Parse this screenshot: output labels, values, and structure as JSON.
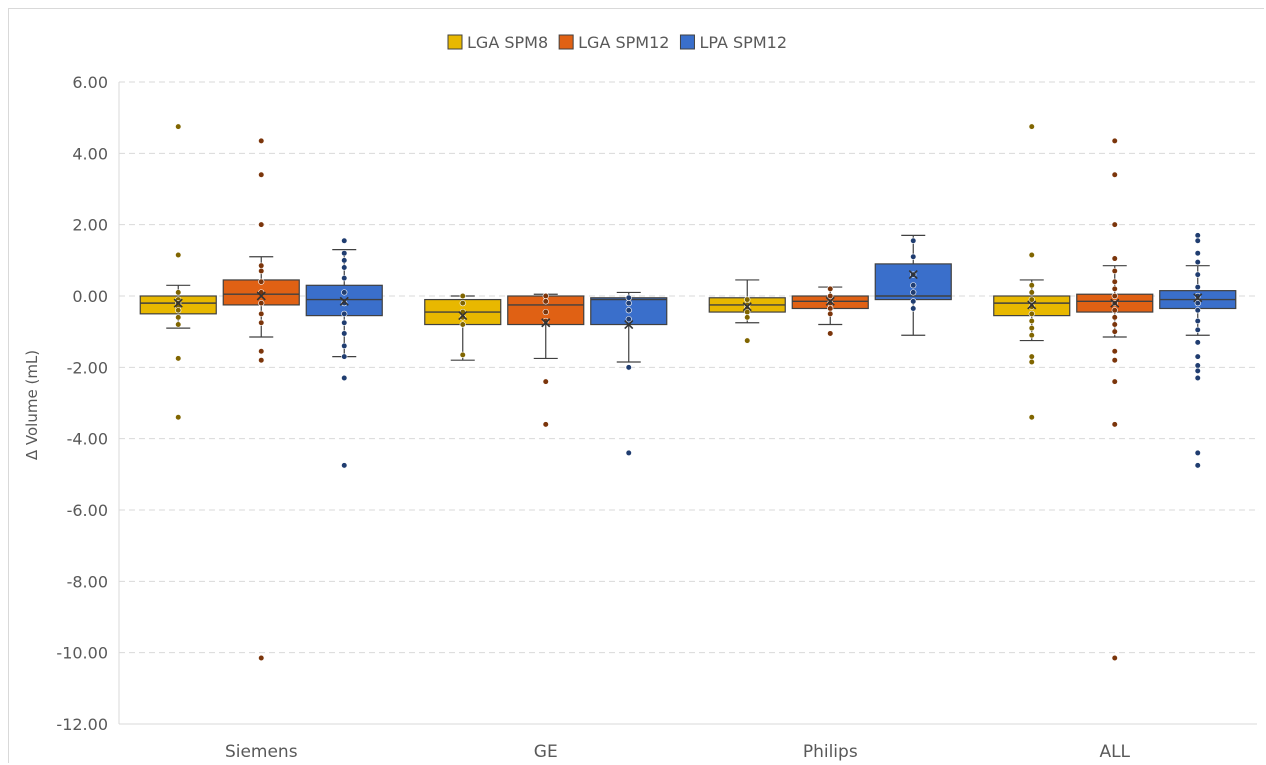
{
  "chart_data": {
    "type": "box",
    "title": "",
    "xlabel": "",
    "ylabel": "Δ Volume (mL)",
    "ylim": [
      -12,
      6
    ],
    "yticks": [
      "6.00",
      "4.00",
      "2.00",
      "0.00",
      "-2.00",
      "-4.00",
      "-6.00",
      "-8.00",
      "-10.00",
      "-12.00"
    ],
    "ytick_values": [
      6,
      4,
      2,
      0,
      -2,
      -4,
      -6,
      -8,
      -10,
      -12
    ],
    "grid": true,
    "legend_position": "top",
    "categories": [
      "Siemens",
      "GE",
      "Philips",
      "ALL"
    ],
    "series": [
      {
        "name": "LGA SPM8",
        "color": "#E8B800",
        "boxes": [
          {
            "min": -0.9,
            "q1": -0.5,
            "median": -0.2,
            "q3": 0.0,
            "max": 0.3,
            "mean": -0.2,
            "points": [
              4.75,
              1.15,
              0.1,
              -0.1,
              -0.2,
              -0.3,
              -0.4,
              -0.6,
              -0.8,
              -1.75,
              -3.4
            ]
          },
          {
            "min": -1.8,
            "q1": -0.8,
            "median": -0.45,
            "q3": -0.1,
            "max": 0.0,
            "mean": -0.55,
            "points": [
              0.0,
              -0.2,
              -0.45,
              -0.6,
              -0.8,
              -1.65
            ]
          },
          {
            "min": -0.75,
            "q1": -0.45,
            "median": -0.25,
            "q3": -0.05,
            "max": 0.45,
            "mean": -0.3,
            "points": [
              -0.1,
              -0.25,
              -0.35,
              -0.45,
              -0.6,
              -1.25
            ]
          },
          {
            "min": -1.25,
            "q1": -0.55,
            "median": -0.2,
            "q3": 0.0,
            "max": 0.45,
            "mean": -0.25,
            "points": [
              4.75,
              1.15,
              0.3,
              0.1,
              -0.1,
              -0.3,
              -0.5,
              -0.7,
              -0.9,
              -1.1,
              -1.7,
              -1.85,
              -3.4
            ]
          }
        ]
      },
      {
        "name": "LGA SPM12",
        "color": "#E06114",
        "boxes": [
          {
            "min": -1.15,
            "q1": -0.25,
            "median": 0.05,
            "q3": 0.45,
            "max": 1.1,
            "mean": 0.0,
            "points": [
              4.35,
              3.4,
              2.0,
              0.85,
              0.7,
              0.4,
              0.1,
              -0.2,
              -0.5,
              -0.75,
              -1.55,
              -1.8,
              -10.15
            ]
          },
          {
            "min": -1.75,
            "q1": -0.8,
            "median": -0.25,
            "q3": 0.0,
            "max": 0.05,
            "mean": -0.75,
            "points": [
              0.0,
              -0.15,
              -0.45,
              -0.7,
              -2.4,
              -3.6
            ]
          },
          {
            "min": -0.8,
            "q1": -0.35,
            "median": -0.15,
            "q3": 0.0,
            "max": 0.25,
            "mean": -0.15,
            "points": [
              0.2,
              0.0,
              -0.2,
              -0.35,
              -0.5,
              -1.05
            ]
          },
          {
            "min": -1.15,
            "q1": -0.45,
            "median": -0.15,
            "q3": 0.05,
            "max": 0.85,
            "mean": -0.2,
            "points": [
              4.35,
              3.4,
              2.0,
              1.05,
              0.7,
              0.4,
              0.2,
              0.0,
              -0.2,
              -0.4,
              -0.6,
              -0.8,
              -1.0,
              -1.55,
              -1.8,
              -2.4,
              -3.6,
              -10.15
            ]
          }
        ]
      },
      {
        "name": "LPA SPM12",
        "color": "#3A6FCB",
        "boxes": [
          {
            "min": -1.7,
            "q1": -0.55,
            "median": -0.1,
            "q3": 0.3,
            "max": 1.3,
            "mean": -0.15,
            "points": [
              1.55,
              1.2,
              1.0,
              0.8,
              0.5,
              0.1,
              -0.2,
              -0.5,
              -0.75,
              -1.05,
              -1.4,
              -1.7,
              -2.3,
              -4.75
            ]
          },
          {
            "min": -1.85,
            "q1": -0.8,
            "median": -0.1,
            "q3": -0.05,
            "max": 0.1,
            "mean": -0.8,
            "points": [
              -0.05,
              -0.2,
              -0.4,
              -0.65,
              -2.0,
              -4.4
            ]
          },
          {
            "min": -1.1,
            "q1": -0.1,
            "median": 0.0,
            "q3": 0.9,
            "max": 1.7,
            "mean": 0.6,
            "points": [
              1.55,
              1.1,
              0.6,
              0.3,
              0.1,
              -0.15,
              -0.35
            ]
          },
          {
            "min": -1.1,
            "q1": -0.35,
            "median": -0.1,
            "q3": 0.15,
            "max": 0.85,
            "mean": -0.05,
            "points": [
              1.7,
              1.55,
              1.2,
              0.95,
              0.6,
              0.25,
              0.0,
              -0.2,
              -0.4,
              -0.7,
              -0.95,
              -1.3,
              -1.7,
              -1.95,
              -2.1,
              -2.3,
              -4.4,
              -4.75
            ]
          }
        ]
      }
    ]
  }
}
